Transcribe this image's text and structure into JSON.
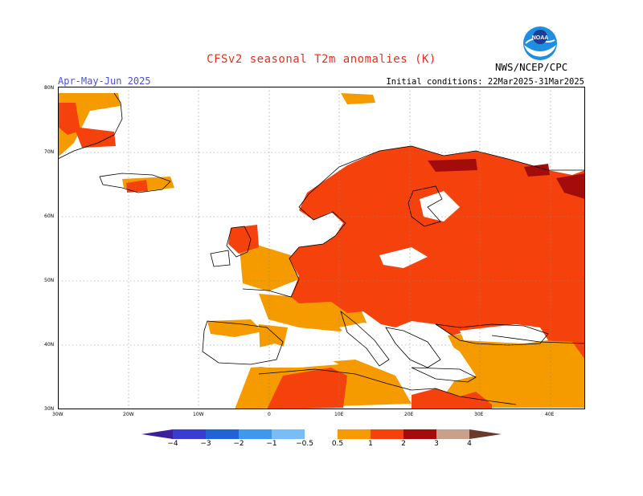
{
  "header": {
    "title": "CFSv2 seasonal T2m anomalies (K)",
    "period": "Apr-May-Jun 2025",
    "initial_conditions": "Initial conditions: 22Mar2025-31Mar2025",
    "agency": "NWS/NCEP/CPC",
    "logo_text": "NOAA"
  },
  "map": {
    "latitude_labels": [
      "80N",
      "70N",
      "60N",
      "50N",
      "40N",
      "30N"
    ],
    "longitude_labels": [
      "30W",
      "20W",
      "10W",
      "0",
      "10E",
      "20E",
      "30E",
      "40E"
    ]
  },
  "legend": {
    "ticks": [
      "−4",
      "−3",
      "−2",
      "−1",
      "−0.5",
      "0.5",
      "1",
      "2",
      "3",
      "4"
    ],
    "colors": {
      "lt_-4": "#3c1f9c",
      "-4_-3": "#3a3ccf",
      "-3_-2": "#1f63d6",
      "-2_-1": "#3e98ec",
      "-1_-0.5": "#78bdf5",
      "neutral": "#ffffff",
      "0.5_1": "#f59b00",
      "1_2": "#f5420c",
      "2_3": "#a40c0c",
      "3_4": "#c9a08c",
      "gt_4": "#6b3a2c"
    }
  }
}
